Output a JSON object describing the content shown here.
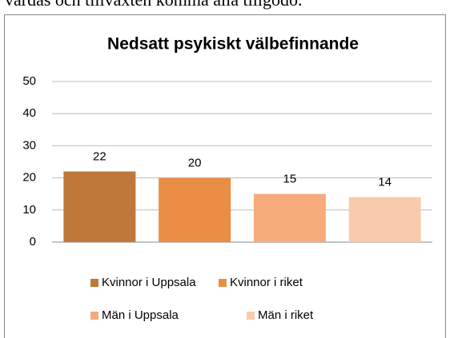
{
  "page_text": "vårdas och tillväxten komma alla tillgodo.",
  "chart_data": {
    "type": "bar",
    "title": "Nedsatt psykiskt välbefinnande",
    "categories": [
      null
    ],
    "series": [
      {
        "name": "Kvinnor i Uppsala",
        "color": "#c0773a",
        "values": [
          22
        ]
      },
      {
        "name": "Kvinnor i riket",
        "color": "#e98e43",
        "values": [
          20
        ]
      },
      {
        "name": "Män i Uppsala",
        "color": "#f5ac7a",
        "values": [
          15
        ]
      },
      {
        "name": "Män i riket",
        "color": "#f8cbad",
        "values": [
          14
        ]
      }
    ],
    "ylim": [
      0,
      50
    ],
    "yticks": [
      0,
      10,
      20,
      30,
      40,
      50
    ],
    "grid": true,
    "legend": "bottom"
  }
}
